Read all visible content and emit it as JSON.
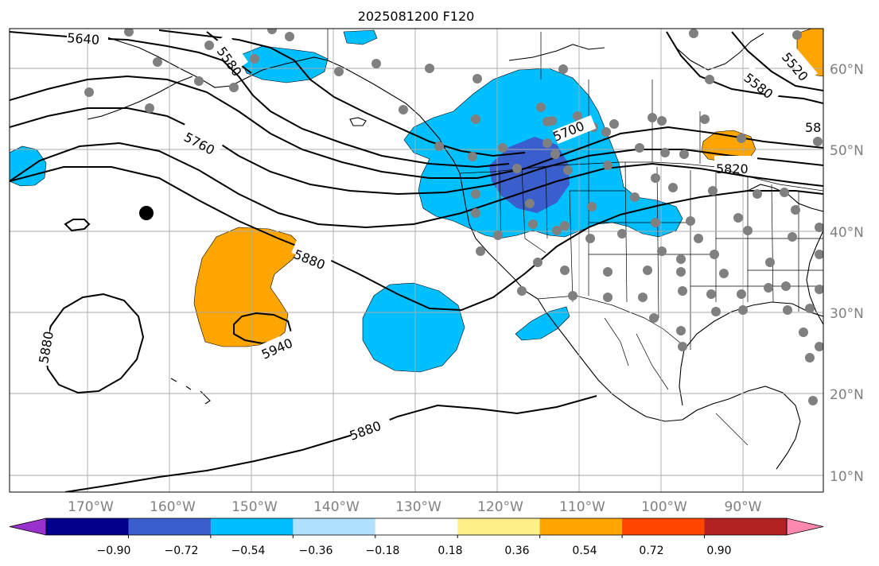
{
  "title": "2025081200 F120",
  "lon_labels": [
    "170°W",
    "160°W",
    "150°W",
    "140°W",
    "130°W",
    "120°W",
    "110°W",
    "100°W",
    "90°W"
  ],
  "lat_labels": [
    "60°N",
    "50°N",
    "40°N",
    "30°N",
    "20°N",
    "10°N"
  ],
  "contour_labels": [
    "5640",
    "5580",
    "5760",
    "5700",
    "5880",
    "5940",
    "5880",
    "5880",
    "5580",
    "5520",
    "5820",
    "58"
  ],
  "colorbar": {
    "tick_labels": [
      "−0.90",
      "−0.72",
      "−0.54",
      "−0.36",
      "−0.18",
      "0.18",
      "0.36",
      "0.54",
      "0.72",
      "0.90"
    ],
    "colors": [
      "#9932cc",
      "#00008b",
      "#3a5fcd",
      "#00bfff",
      "#b0e2ff",
      "#ffffff",
      "#fff08a",
      "#ffa500",
      "#ff4500",
      "#b22222",
      "#ff88b0"
    ]
  },
  "colors": {
    "light_blue": "#00bfff",
    "medium_blue": "#3a5fcd",
    "orange": "#ffa500",
    "station_gray": "#808080",
    "grid_gray": "#a9a9a9"
  }
}
